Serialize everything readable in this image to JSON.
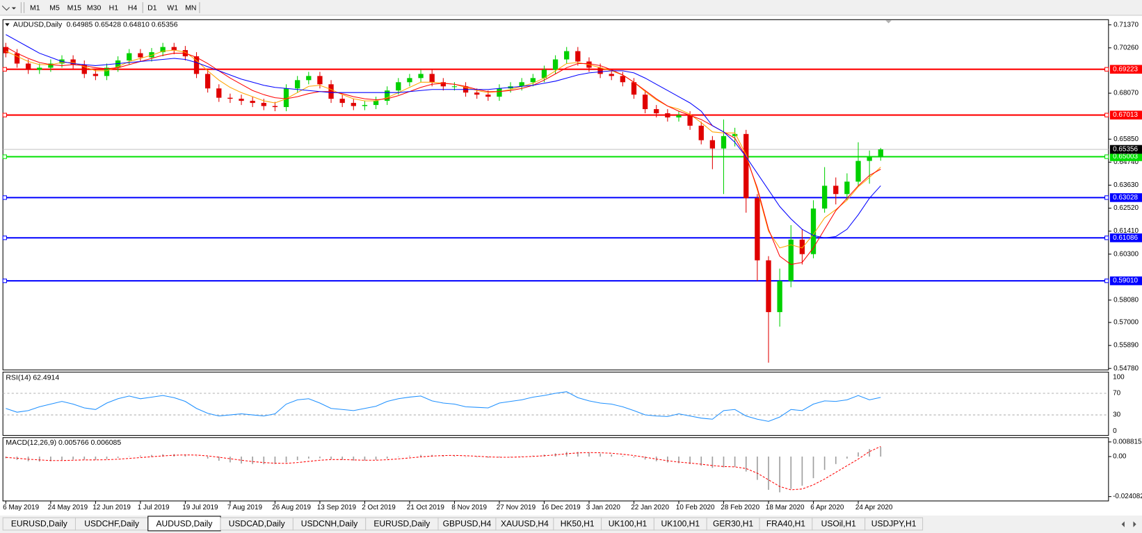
{
  "toolbar": {
    "timeframes": [
      "M1",
      "M5",
      "M15",
      "M30",
      "H1",
      "H4",
      "D1",
      "W1",
      "MN"
    ]
  },
  "chart_data": [
    {
      "type": "candlestick",
      "title": "AUDUSD,Daily",
      "quote": "0.64985 0.65428 0.64810 0.65356",
      "categories": [
        "6 May 2019",
        null,
        null,
        null,
        "24 May 2019",
        null,
        null,
        null,
        "12 Jun 2019",
        null,
        null,
        null,
        "1 Jul 2019",
        null,
        null,
        null,
        "19 Jul 2019",
        null,
        null,
        null,
        "7 Aug 2019",
        null,
        null,
        null,
        "26 Aug 2019",
        null,
        null,
        null,
        "13 Sep 2019",
        null,
        null,
        null,
        "2 Oct 2019",
        null,
        null,
        null,
        "21 Oct 2019",
        null,
        null,
        null,
        "8 Nov 2019",
        null,
        null,
        null,
        "27 Nov 2019",
        null,
        null,
        null,
        "16 Dec 2019",
        null,
        null,
        null,
        "3 Jan 2020",
        null,
        null,
        null,
        "22 Jan 2020",
        null,
        null,
        null,
        "10 Feb 2020",
        null,
        null,
        null,
        "28 Feb 2020",
        null,
        null,
        null,
        "18 Mar 2020",
        null,
        null,
        null,
        "6 Apr 2020",
        null,
        null,
        null,
        "24 Apr 2020",
        null,
        null
      ],
      "ohlc": {
        "open": [
          0.703,
          0.7,
          0.695,
          0.692,
          0.693,
          0.695,
          0.697,
          0.6945,
          0.69,
          0.689,
          0.693,
          0.6965,
          0.7,
          0.698,
          0.7005,
          0.703,
          0.7015,
          0.6985,
          0.69,
          0.683,
          0.6785,
          0.678,
          0.677,
          0.676,
          0.6745,
          0.674,
          0.683,
          0.687,
          0.689,
          0.685,
          0.678,
          0.676,
          0.6745,
          0.675,
          0.677,
          0.682,
          0.686,
          0.688,
          0.69,
          0.686,
          0.684,
          0.684,
          0.681,
          0.68,
          0.679,
          0.683,
          0.684,
          0.686,
          0.688,
          0.692,
          0.697,
          0.701,
          0.696,
          0.693,
          0.69,
          0.689,
          0.686,
          0.68,
          0.673,
          0.671,
          0.669,
          0.67,
          0.665,
          0.658,
          0.654,
          0.66,
          0.661,
          0.63,
          0.6,
          0.575,
          0.59,
          0.61,
          0.603,
          0.625,
          0.636,
          0.632,
          0.638,
          0.648,
          0.64985
        ],
        "high": [
          0.705,
          0.702,
          0.697,
          0.695,
          0.697,
          0.699,
          0.699,
          0.6965,
          0.692,
          0.695,
          0.6985,
          0.702,
          0.702,
          0.7025,
          0.705,
          0.705,
          0.7035,
          0.7005,
          0.692,
          0.685,
          0.6805,
          0.68,
          0.679,
          0.678,
          0.6765,
          0.685,
          0.689,
          0.691,
          0.691,
          0.687,
          0.68,
          0.678,
          0.677,
          0.679,
          0.684,
          0.688,
          0.69,
          0.692,
          0.692,
          0.688,
          0.686,
          0.686,
          0.683,
          0.682,
          0.685,
          0.686,
          0.688,
          0.69,
          0.694,
          0.699,
          0.703,
          0.703,
          0.698,
          0.695,
          0.692,
          0.691,
          0.688,
          0.682,
          0.675,
          0.673,
          0.672,
          0.672,
          0.667,
          0.66,
          0.668,
          0.664,
          0.663,
          0.632,
          0.602,
          0.596,
          0.617,
          0.615,
          0.629,
          0.645,
          0.64,
          0.642,
          0.657,
          0.653,
          0.65428
        ],
        "low": [
          0.698,
          0.693,
          0.69,
          0.69,
          0.691,
          0.693,
          0.6925,
          0.688,
          0.687,
          0.687,
          0.691,
          0.6945,
          0.696,
          0.696,
          0.6985,
          0.6995,
          0.6965,
          0.688,
          0.681,
          0.6765,
          0.676,
          0.675,
          0.674,
          0.6725,
          0.672,
          0.672,
          0.681,
          0.685,
          0.683,
          0.676,
          0.674,
          0.6725,
          0.6725,
          0.673,
          0.675,
          0.68,
          0.684,
          0.686,
          0.684,
          0.682,
          0.682,
          0.679,
          0.678,
          0.677,
          0.677,
          0.681,
          0.682,
          0.684,
          0.686,
          0.69,
          0.695,
          0.694,
          0.691,
          0.688,
          0.687,
          0.684,
          0.678,
          0.671,
          0.669,
          0.667,
          0.667,
          0.663,
          0.656,
          0.644,
          0.632,
          0.655,
          0.623,
          0.59,
          0.5506,
          0.568,
          0.587,
          0.598,
          0.601,
          0.623,
          0.627,
          0.629,
          0.636,
          0.637,
          0.6481
        ],
        "close": [
          0.7,
          0.695,
          0.692,
          0.693,
          0.695,
          0.697,
          0.6945,
          0.69,
          0.689,
          0.693,
          0.6965,
          0.7,
          0.698,
          0.7005,
          0.703,
          0.7015,
          0.6985,
          0.69,
          0.683,
          0.6785,
          0.678,
          0.677,
          0.676,
          0.6745,
          0.674,
          0.683,
          0.687,
          0.689,
          0.685,
          0.678,
          0.676,
          0.6745,
          0.675,
          0.677,
          0.682,
          0.686,
          0.688,
          0.69,
          0.686,
          0.684,
          0.684,
          0.681,
          0.68,
          0.679,
          0.683,
          0.684,
          0.686,
          0.688,
          0.692,
          0.697,
          0.701,
          0.696,
          0.693,
          0.69,
          0.689,
          0.686,
          0.68,
          0.673,
          0.671,
          0.669,
          0.67,
          0.665,
          0.658,
          0.654,
          0.66,
          0.661,
          0.63,
          0.6,
          0.575,
          0.59,
          0.61,
          0.603,
          0.625,
          0.636,
          0.632,
          0.638,
          0.648,
          0.6499,
          0.65356
        ]
      },
      "up_color": "#00d000",
      "down_color": "#e00000",
      "moving_averages": [
        {
          "color": "#ffa500",
          "values": [
            0.701,
            0.6985,
            0.696,
            0.6945,
            0.6945,
            0.6955,
            0.6955,
            0.6935,
            0.6915,
            0.6915,
            0.6935,
            0.696,
            0.6975,
            0.699,
            0.701,
            0.7015,
            0.7005,
            0.6965,
            0.6915,
            0.687,
            0.6835,
            0.681,
            0.679,
            0.677,
            0.676,
            0.678,
            0.681,
            0.684,
            0.6845,
            0.6825,
            0.68,
            0.678,
            0.677,
            0.677,
            0.6785,
            0.681,
            0.6835,
            0.686,
            0.686,
            0.6855,
            0.685,
            0.6835,
            0.682,
            0.681,
            0.6815,
            0.6825,
            0.684,
            0.6855,
            0.688,
            0.6915,
            0.695,
            0.6955,
            0.6945,
            0.693,
            0.6915,
            0.6895,
            0.686,
            0.6815,
            0.6775,
            0.6745,
            0.673,
            0.6705,
            0.6665,
            0.662,
            0.6615,
            0.6615,
            0.651,
            0.634,
            0.614,
            0.606,
            0.6075,
            0.606,
            0.6125,
            0.6205,
            0.6245,
            0.629,
            0.6355,
            0.64,
            0.645
          ]
        },
        {
          "color": "#ff0000",
          "values": [
            0.703,
            0.7,
            0.6975,
            0.6955,
            0.6945,
            0.694,
            0.6945,
            0.694,
            0.693,
            0.6925,
            0.693,
            0.6945,
            0.696,
            0.6975,
            0.699,
            0.7,
            0.7,
            0.698,
            0.695,
            0.6915,
            0.688,
            0.685,
            0.682,
            0.68,
            0.6785,
            0.678,
            0.679,
            0.6805,
            0.6815,
            0.6815,
            0.6805,
            0.679,
            0.678,
            0.6775,
            0.678,
            0.6795,
            0.6815,
            0.6835,
            0.685,
            0.6855,
            0.685,
            0.684,
            0.6825,
            0.6815,
            0.6815,
            0.682,
            0.683,
            0.6845,
            0.687,
            0.69,
            0.693,
            0.695,
            0.695,
            0.694,
            0.692,
            0.6895,
            0.686,
            0.682,
            0.678,
            0.6745,
            0.672,
            0.67,
            0.668,
            0.665,
            0.662,
            0.659,
            0.65,
            0.635,
            0.615,
            0.602,
            0.598,
            0.599,
            0.606,
            0.615,
            0.624,
            0.63,
            0.636,
            0.641,
            0.644
          ]
        },
        {
          "color": "#0000ff",
          "values": [
            0.709,
            0.706,
            0.703,
            0.7,
            0.698,
            0.696,
            0.695,
            0.6945,
            0.694,
            0.6945,
            0.695,
            0.6955,
            0.696,
            0.6965,
            0.697,
            0.6975,
            0.697,
            0.6955,
            0.6935,
            0.6915,
            0.6895,
            0.6875,
            0.686,
            0.6845,
            0.6835,
            0.683,
            0.6825,
            0.682,
            0.6815,
            0.681,
            0.681,
            0.681,
            0.681,
            0.681,
            0.681,
            0.681,
            0.6815,
            0.682,
            0.6825,
            0.6825,
            0.6825,
            0.6825,
            0.6825,
            0.6825,
            0.683,
            0.6835,
            0.684,
            0.6845,
            0.6855,
            0.6865,
            0.688,
            0.6895,
            0.6905,
            0.691,
            0.6915,
            0.6915,
            0.6905,
            0.688,
            0.685,
            0.682,
            0.679,
            0.676,
            0.672,
            0.665,
            0.662,
            0.657,
            0.65,
            0.642,
            0.634,
            0.626,
            0.62,
            0.615,
            0.612,
            0.6108,
            0.6115,
            0.615,
            0.622,
            0.63,
            0.636
          ]
        }
      ],
      "levels": {
        "values": [
          0.69223,
          0.67013,
          0.65003,
          0.63028,
          0.61086,
          0.5901
        ],
        "value_labels": [
          "0.69223",
          "0.67013",
          "0.65003",
          "0.63028",
          "0.61086",
          "0.59010"
        ],
        "colors": [
          "#ff0000",
          "#ff0000",
          "#00e000",
          "#0000ff",
          "#0000ff",
          "#0000ff"
        ]
      },
      "last": {
        "value": 0.65356,
        "label": "0.65356"
      },
      "ylim": [
        0.5471,
        0.7162
      ],
      "yticks": [
        {
          "value": 0.7137,
          "label": "0.71370"
        },
        {
          "value": 0.7026,
          "label": "0.70260"
        },
        {
          "value": 0.6807,
          "label": "0.68070"
        },
        {
          "value": 0.6585,
          "label": "0.65850"
        },
        {
          "value": 0.6474,
          "label": "0.64740"
        },
        {
          "value": 0.6363,
          "label": "0.63630"
        },
        {
          "value": 0.6252,
          "label": "0.62520"
        },
        {
          "value": 0.6141,
          "label": "0.61410"
        },
        {
          "value": 0.603,
          "label": "0.60300"
        },
        {
          "value": 0.5808,
          "label": "0.58080"
        },
        {
          "value": 0.57,
          "label": "0.57000"
        },
        {
          "value": 0.5589,
          "label": "0.55890"
        },
        {
          "value": 0.5478,
          "label": "0.54780"
        }
      ]
    },
    {
      "type": "line",
      "title": "RSI(14) 62.4914",
      "color": "#1e90ff",
      "values": [
        42,
        35,
        38,
        45,
        50,
        55,
        50,
        43,
        40,
        52,
        60,
        65,
        60,
        63,
        66,
        62,
        55,
        42,
        33,
        28,
        30,
        32,
        30,
        28,
        32,
        50,
        58,
        60,
        52,
        42,
        40,
        38,
        42,
        46,
        55,
        60,
        63,
        65,
        56,
        52,
        50,
        45,
        44,
        43,
        52,
        55,
        58,
        63,
        66,
        70,
        73,
        62,
        56,
        52,
        50,
        45,
        38,
        30,
        28,
        27,
        32,
        28,
        24,
        22,
        38,
        40,
        28,
        22,
        18,
        26,
        40,
        38,
        50,
        56,
        55,
        58,
        66,
        58,
        62.4914
      ],
      "ylim": [
        0,
        100
      ],
      "yticks": [
        100,
        70,
        30,
        0
      ]
    },
    {
      "type": "macd",
      "title": "MACD(12,26,9) 0.005766 0.006085",
      "histogram_color": "#a0a0a0",
      "signal_color": "#ff0000",
      "histogram": [
        -0.001,
        -0.002,
        -0.0028,
        -0.003,
        -0.0028,
        -0.0022,
        -0.0018,
        -0.0018,
        -0.002,
        -0.0015,
        -0.0008,
        0.0002,
        0.0006,
        0.001,
        0.0014,
        0.0015,
        0.0012,
        0.0002,
        -0.0012,
        -0.0025,
        -0.0035,
        -0.0042,
        -0.0045,
        -0.0046,
        -0.0045,
        -0.0035,
        -0.0022,
        -0.0012,
        -0.001,
        -0.0015,
        -0.002,
        -0.0024,
        -0.0024,
        -0.002,
        -0.0012,
        -0.0003,
        0.0005,
        0.001,
        0.001,
        0.0008,
        0.0005,
        0,
        -0.0004,
        -0.0007,
        -0.0005,
        -0.0002,
        0.0002,
        0.0006,
        0.0012,
        0.002,
        0.0028,
        0.0028,
        0.0024,
        0.0018,
        0.0012,
        0.0004,
        -0.0006,
        -0.0018,
        -0.0028,
        -0.0036,
        -0.004,
        -0.0045,
        -0.0055,
        -0.0068,
        -0.0065,
        -0.0062,
        -0.009,
        -0.014,
        -0.02,
        -0.0215,
        -0.0195,
        -0.0175,
        -0.013,
        -0.008,
        -0.0045,
        -0.0012,
        0.0025,
        0.0045,
        0.005766
      ],
      "signal": [
        -0.0005,
        -0.001,
        -0.0016,
        -0.002,
        -0.0024,
        -0.0024,
        -0.0022,
        -0.002,
        -0.002,
        -0.0019,
        -0.0016,
        -0.0011,
        -0.0006,
        -0.0001,
        0.0004,
        0.0008,
        0.001,
        0.0009,
        0.0004,
        -0.0004,
        -0.0013,
        -0.0022,
        -0.003,
        -0.0036,
        -0.004,
        -0.0041,
        -0.0036,
        -0.0029,
        -0.0022,
        -0.0018,
        -0.0018,
        -0.002,
        -0.0022,
        -0.0022,
        -0.0019,
        -0.0014,
        -0.0008,
        -0.0002,
        0.0003,
        0.0006,
        0.0007,
        0.0005,
        0.0002,
        -0.0002,
        -0.0004,
        -0.0004,
        -0.0002,
        0.0001,
        0.0005,
        0.001,
        0.0017,
        0.0022,
        0.0024,
        0.0023,
        0.002,
        0.0014,
        0.0006,
        -0.0004,
        -0.0015,
        -0.0025,
        -0.0033,
        -0.0039,
        -0.0046,
        -0.0054,
        -0.006,
        -0.0062,
        -0.0072,
        -0.01,
        -0.014,
        -0.018,
        -0.02,
        -0.0195,
        -0.017,
        -0.0135,
        -0.0095,
        -0.0055,
        -0.0015,
        0.003,
        0.006085
      ],
      "ylim": [
        -0.0267,
        0.0114
      ],
      "yticks": [
        0.008815,
        {
          "value": 0,
          "label": "0.00"
        },
        -0.024082
      ]
    }
  ],
  "tabs": [
    "EURUSD,Daily",
    "USDCHF,Daily",
    "AUDUSD,Daily",
    "USDCAD,Daily",
    "USDCNH,Daily",
    "EURUSD,Daily",
    "GBPUSD,H4",
    "XAUUSD,H4",
    "HK50,H1",
    "UK100,H1",
    "UK100,H1",
    "GER30,H1",
    "FRA40,H1",
    "USOil,H1",
    "USDJPY,H1"
  ],
  "active_tab": 2
}
